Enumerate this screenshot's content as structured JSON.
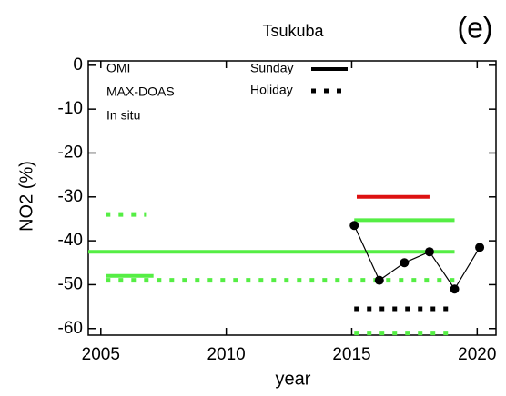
{
  "chart_data": {
    "type": "line",
    "title": "Tsukuba",
    "panel_label": "(e)",
    "x_label": "year",
    "y_label": "NO2 (%)",
    "xlim": [
      2004.5,
      2020.75
    ],
    "ylim": [
      -61.5,
      1
    ],
    "xticks": [
      2005,
      2010,
      2015,
      2020
    ],
    "yticks": [
      0,
      -10,
      -20,
      -30,
      -40,
      -50,
      -60
    ],
    "line_styles": [
      {
        "name": "Sunday",
        "dotted": false
      },
      {
        "name": "Holiday",
        "dotted": true
      }
    ],
    "series": [
      {
        "name": "OMI",
        "color": "#55ee44",
        "lines": [
          {
            "dotted": false,
            "x": [
              2004.5,
              2019.1
            ],
            "y": -42.5
          },
          {
            "dotted": false,
            "x": [
              2005.2,
              2007.1
            ],
            "y": -48
          },
          {
            "dotted": true,
            "x": [
              2005.2,
              2006.8
            ],
            "y": -34
          },
          {
            "dotted": true,
            "x": [
              2005.2,
              2019.1
            ],
            "y": -49
          },
          {
            "dotted": false,
            "x": [
              2015.1,
              2019.1
            ],
            "y": -35.3
          },
          {
            "dotted": true,
            "x": [
              2015.1,
              2019.1
            ],
            "y": -61
          }
        ]
      },
      {
        "name": "MAX-DOAS",
        "color": "#000000",
        "x": [
          2015.1,
          2016.1,
          2017.1,
          2018.1,
          2019.1,
          2020.1
        ],
        "values": [
          -36.5,
          -49,
          -45,
          -42.5,
          -51,
          -41.5
        ],
        "lines": [
          {
            "dotted": true,
            "x": [
              2015.1,
              2019.1
            ],
            "y": -55.5
          }
        ]
      },
      {
        "name": "In situ",
        "color": "#dd1111",
        "lines": [
          {
            "dotted": false,
            "x": [
              2015.2,
              2018.1
            ],
            "y": -30
          }
        ]
      }
    ]
  }
}
